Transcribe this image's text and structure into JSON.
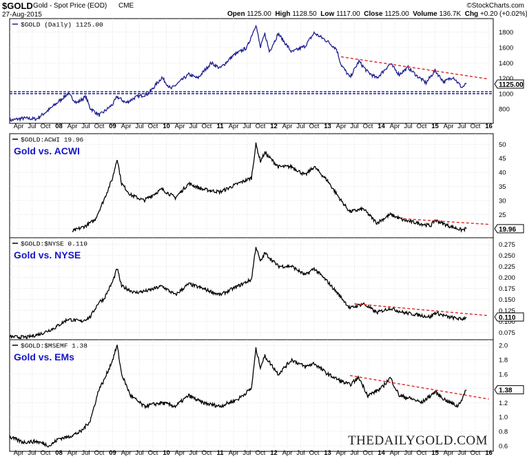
{
  "header": {
    "symbol": "$GOLD",
    "description": "Gold - Spot Price (EOD)",
    "exchange": "CME",
    "date": "27-Aug-2015",
    "brand": "©StockCharts.com",
    "quote": {
      "open_label": "Open",
      "open": "1125.00",
      "high_label": "High",
      "high": "1128.50",
      "low_label": "Low",
      "low": "1117.00",
      "close_label": "Close",
      "close": "1125.00",
      "volume_label": "Volume",
      "volume": "136.7K",
      "chg_label": "Chg",
      "chg": "+0.20 (+0.02%)"
    }
  },
  "watermark": "THEDAILYGOLD.COM",
  "colors": {
    "gold_line": "#1f1f8f",
    "ratio_line": "#000000",
    "trend": "#e02020",
    "support": "#1f1f8f",
    "grid": "#cccccc"
  },
  "x_axis": {
    "labels": [
      "Apr",
      "Jul",
      "Oct",
      "08",
      "Apr",
      "Jul",
      "Oct",
      "09",
      "Apr",
      "Jul",
      "Oct",
      "10",
      "Apr",
      "Jul",
      "Oct",
      "11",
      "Apr",
      "Jul",
      "Oct",
      "12",
      "Apr",
      "Jul",
      "Oct",
      "13",
      "Apr",
      "Jul",
      "Oct",
      "14",
      "Apr",
      "Jul",
      "Oct",
      "15",
      "Apr",
      "Jul",
      "Oct",
      "16"
    ],
    "bold_labels": [
      "08",
      "09",
      "10",
      "11",
      "12",
      "13",
      "14",
      "15",
      "16"
    ]
  },
  "chart_data": [
    {
      "type": "line",
      "legend": "$GOLD (Daily) 1125.00",
      "last_value": "1125.00",
      "y_ticks": [
        800,
        1000,
        1200,
        1400,
        1600,
        1800
      ],
      "ylim": [
        640,
        1950
      ],
      "x_start": "2007-04",
      "x_end": "2015-08",
      "anchors": [
        [
          "2007-02",
          650
        ],
        [
          "2007-05",
          680
        ],
        [
          "2007-08",
          670
        ],
        [
          "2007-11",
          800
        ],
        [
          "2008-01",
          900
        ],
        [
          "2008-03",
          1000
        ],
        [
          "2008-05",
          880
        ],
        [
          "2008-07",
          960
        ],
        [
          "2008-08",
          810
        ],
        [
          "2008-10",
          720
        ],
        [
          "2008-11",
          760
        ],
        [
          "2009-01",
          860
        ],
        [
          "2009-02",
          960
        ],
        [
          "2009-04",
          880
        ],
        [
          "2009-06",
          950
        ],
        [
          "2009-09",
          1000
        ],
        [
          "2009-12",
          1210
        ],
        [
          "2010-02",
          1060
        ],
        [
          "2010-06",
          1250
        ],
        [
          "2010-08",
          1200
        ],
        [
          "2010-11",
          1400
        ],
        [
          "2011-01",
          1330
        ],
        [
          "2011-04",
          1500
        ],
        [
          "2011-07",
          1600
        ],
        [
          "2011-09",
          1900
        ],
        [
          "2011-10",
          1600
        ],
        [
          "2011-11",
          1780
        ],
        [
          "2011-12",
          1550
        ],
        [
          "2012-02",
          1780
        ],
        [
          "2012-05",
          1540
        ],
        [
          "2012-08",
          1620
        ],
        [
          "2012-10",
          1790
        ],
        [
          "2013-01",
          1680
        ],
        [
          "2013-03",
          1580
        ],
        [
          "2013-04",
          1380
        ],
        [
          "2013-06",
          1210
        ],
        [
          "2013-08",
          1420
        ],
        [
          "2013-10",
          1280
        ],
        [
          "2013-12",
          1200
        ],
        [
          "2014-03",
          1390
        ],
        [
          "2014-05",
          1250
        ],
        [
          "2014-07",
          1340
        ],
        [
          "2014-09",
          1230
        ],
        [
          "2014-11",
          1140
        ],
        [
          "2015-01",
          1300
        ],
        [
          "2015-03",
          1150
        ],
        [
          "2015-05",
          1220
        ],
        [
          "2015-07",
          1080
        ],
        [
          "2015-08",
          1125
        ]
      ],
      "trendline": {
        "from": [
          "2013-04",
          1480
        ],
        "to": [
          "2016-01",
          1190
        ]
      },
      "support_levels": [
        1025,
        1000
      ]
    },
    {
      "type": "line",
      "legend": "$GOLD:ACWI 19.96",
      "panel_title": "Gold vs. ACWI",
      "last_value": "19.96",
      "y_ticks": [
        20,
        25,
        30,
        35,
        40,
        45,
        50
      ],
      "ylim": [
        17,
        53
      ],
      "anchors": [
        [
          "2008-04",
          19
        ],
        [
          "2008-07",
          21
        ],
        [
          "2008-09",
          23
        ],
        [
          "2008-11",
          30
        ],
        [
          "2009-01",
          38
        ],
        [
          "2009-02",
          45
        ],
        [
          "2009-03",
          36
        ],
        [
          "2009-05",
          32
        ],
        [
          "2009-08",
          30
        ],
        [
          "2009-12",
          34
        ],
        [
          "2010-03",
          31
        ],
        [
          "2010-06",
          36
        ],
        [
          "2010-09",
          34
        ],
        [
          "2011-01",
          33
        ],
        [
          "2011-05",
          36
        ],
        [
          "2011-08",
          38
        ],
        [
          "2011-09",
          50
        ],
        [
          "2011-10",
          44
        ],
        [
          "2011-11",
          47
        ],
        [
          "2012-02",
          42
        ],
        [
          "2012-05",
          42
        ],
        [
          "2012-08",
          39
        ],
        [
          "2012-10",
          42
        ],
        [
          "2013-01",
          37
        ],
        [
          "2013-04",
          30
        ],
        [
          "2013-06",
          26
        ],
        [
          "2013-09",
          27
        ],
        [
          "2013-12",
          22
        ],
        [
          "2014-03",
          25
        ],
        [
          "2014-06",
          23
        ],
        [
          "2014-09",
          22
        ],
        [
          "2014-12",
          21
        ],
        [
          "2015-01",
          23
        ],
        [
          "2015-04",
          21
        ],
        [
          "2015-07",
          19.5
        ],
        [
          "2015-08",
          20
        ]
      ],
      "trendline": {
        "from": [
          "2014-06",
          23.5
        ],
        "to": [
          "2016-01",
          21.5
        ]
      }
    },
    {
      "type": "line",
      "legend": "$GOLD:$NYSE 0.110",
      "panel_title": "Gold vs. NYSE",
      "last_value": "0.110",
      "y_ticks": [
        0.075,
        0.1,
        0.125,
        0.15,
        0.175,
        0.2,
        0.225,
        0.25,
        0.275
      ],
      "ylim": [
        0.06,
        0.285
      ],
      "anchors": [
        [
          "2007-02",
          0.065
        ],
        [
          "2007-06",
          0.064
        ],
        [
          "2007-09",
          0.072
        ],
        [
          "2007-12",
          0.085
        ],
        [
          "2008-03",
          0.105
        ],
        [
          "2008-06",
          0.1
        ],
        [
          "2008-08",
          0.11
        ],
        [
          "2008-10",
          0.145
        ],
        [
          "2008-11",
          0.15
        ],
        [
          "2009-01",
          0.19
        ],
        [
          "2009-02",
          0.22
        ],
        [
          "2009-03",
          0.18
        ],
        [
          "2009-06",
          0.165
        ],
        [
          "2009-09",
          0.17
        ],
        [
          "2009-12",
          0.18
        ],
        [
          "2010-03",
          0.16
        ],
        [
          "2010-06",
          0.185
        ],
        [
          "2010-09",
          0.175
        ],
        [
          "2011-01",
          0.16
        ],
        [
          "2011-05",
          0.18
        ],
        [
          "2011-08",
          0.195
        ],
        [
          "2011-09",
          0.27
        ],
        [
          "2011-10",
          0.235
        ],
        [
          "2011-11",
          0.255
        ],
        [
          "2012-02",
          0.225
        ],
        [
          "2012-05",
          0.225
        ],
        [
          "2012-08",
          0.205
        ],
        [
          "2012-10",
          0.22
        ],
        [
          "2013-01",
          0.19
        ],
        [
          "2013-04",
          0.155
        ],
        [
          "2013-06",
          0.13
        ],
        [
          "2013-09",
          0.14
        ],
        [
          "2013-12",
          0.12
        ],
        [
          "2014-03",
          0.13
        ],
        [
          "2014-06",
          0.12
        ],
        [
          "2014-09",
          0.115
        ],
        [
          "2014-12",
          0.11
        ],
        [
          "2015-01",
          0.12
        ],
        [
          "2015-04",
          0.11
        ],
        [
          "2015-07",
          0.105
        ],
        [
          "2015-08",
          0.11
        ]
      ],
      "trendline": {
        "from": [
          "2013-07",
          0.14
        ],
        "to": [
          "2016-01",
          0.113
        ]
      }
    },
    {
      "type": "line",
      "legend": "$GOLD:$MSEMF 1.38",
      "panel_title": "Gold vs. EMs",
      "last_value": "1.38",
      "y_ticks": [
        0.6,
        0.8,
        1.0,
        1.2,
        1.4,
        1.6,
        1.8,
        2.0
      ],
      "ylim": [
        0.55,
        2.05
      ],
      "anchors": [
        [
          "2007-02",
          0.72
        ],
        [
          "2007-05",
          0.65
        ],
        [
          "2007-08",
          0.66
        ],
        [
          "2007-11",
          0.6
        ],
        [
          "2008-01",
          0.7
        ],
        [
          "2008-03",
          0.72
        ],
        [
          "2008-06",
          0.8
        ],
        [
          "2008-08",
          0.95
        ],
        [
          "2008-10",
          1.4
        ],
        [
          "2008-11",
          1.5
        ],
        [
          "2009-01",
          1.8
        ],
        [
          "2009-02",
          2.0
        ],
        [
          "2009-03",
          1.6
        ],
        [
          "2009-05",
          1.3
        ],
        [
          "2009-08",
          1.15
        ],
        [
          "2009-12",
          1.2
        ],
        [
          "2010-03",
          1.15
        ],
        [
          "2010-06",
          1.3
        ],
        [
          "2010-09",
          1.2
        ],
        [
          "2011-01",
          1.15
        ],
        [
          "2011-05",
          1.25
        ],
        [
          "2011-08",
          1.4
        ],
        [
          "2011-09",
          1.95
        ],
        [
          "2011-10",
          1.7
        ],
        [
          "2011-11",
          1.85
        ],
        [
          "2012-02",
          1.6
        ],
        [
          "2012-05",
          1.8
        ],
        [
          "2012-08",
          1.7
        ],
        [
          "2012-10",
          1.75
        ],
        [
          "2013-01",
          1.6
        ],
        [
          "2013-04",
          1.5
        ],
        [
          "2013-06",
          1.45
        ],
        [
          "2013-08",
          1.55
        ],
        [
          "2013-10",
          1.3
        ],
        [
          "2014-01",
          1.4
        ],
        [
          "2014-03",
          1.55
        ],
        [
          "2014-05",
          1.3
        ],
        [
          "2014-08",
          1.25
        ],
        [
          "2014-10",
          1.2
        ],
        [
          "2015-01",
          1.35
        ],
        [
          "2015-03",
          1.25
        ],
        [
          "2015-06",
          1.15
        ],
        [
          "2015-07",
          1.25
        ],
        [
          "2015-08",
          1.38
        ]
      ],
      "trendline": {
        "from": [
          "2013-06",
          1.58
        ],
        "to": [
          "2016-01",
          1.25
        ]
      }
    }
  ]
}
